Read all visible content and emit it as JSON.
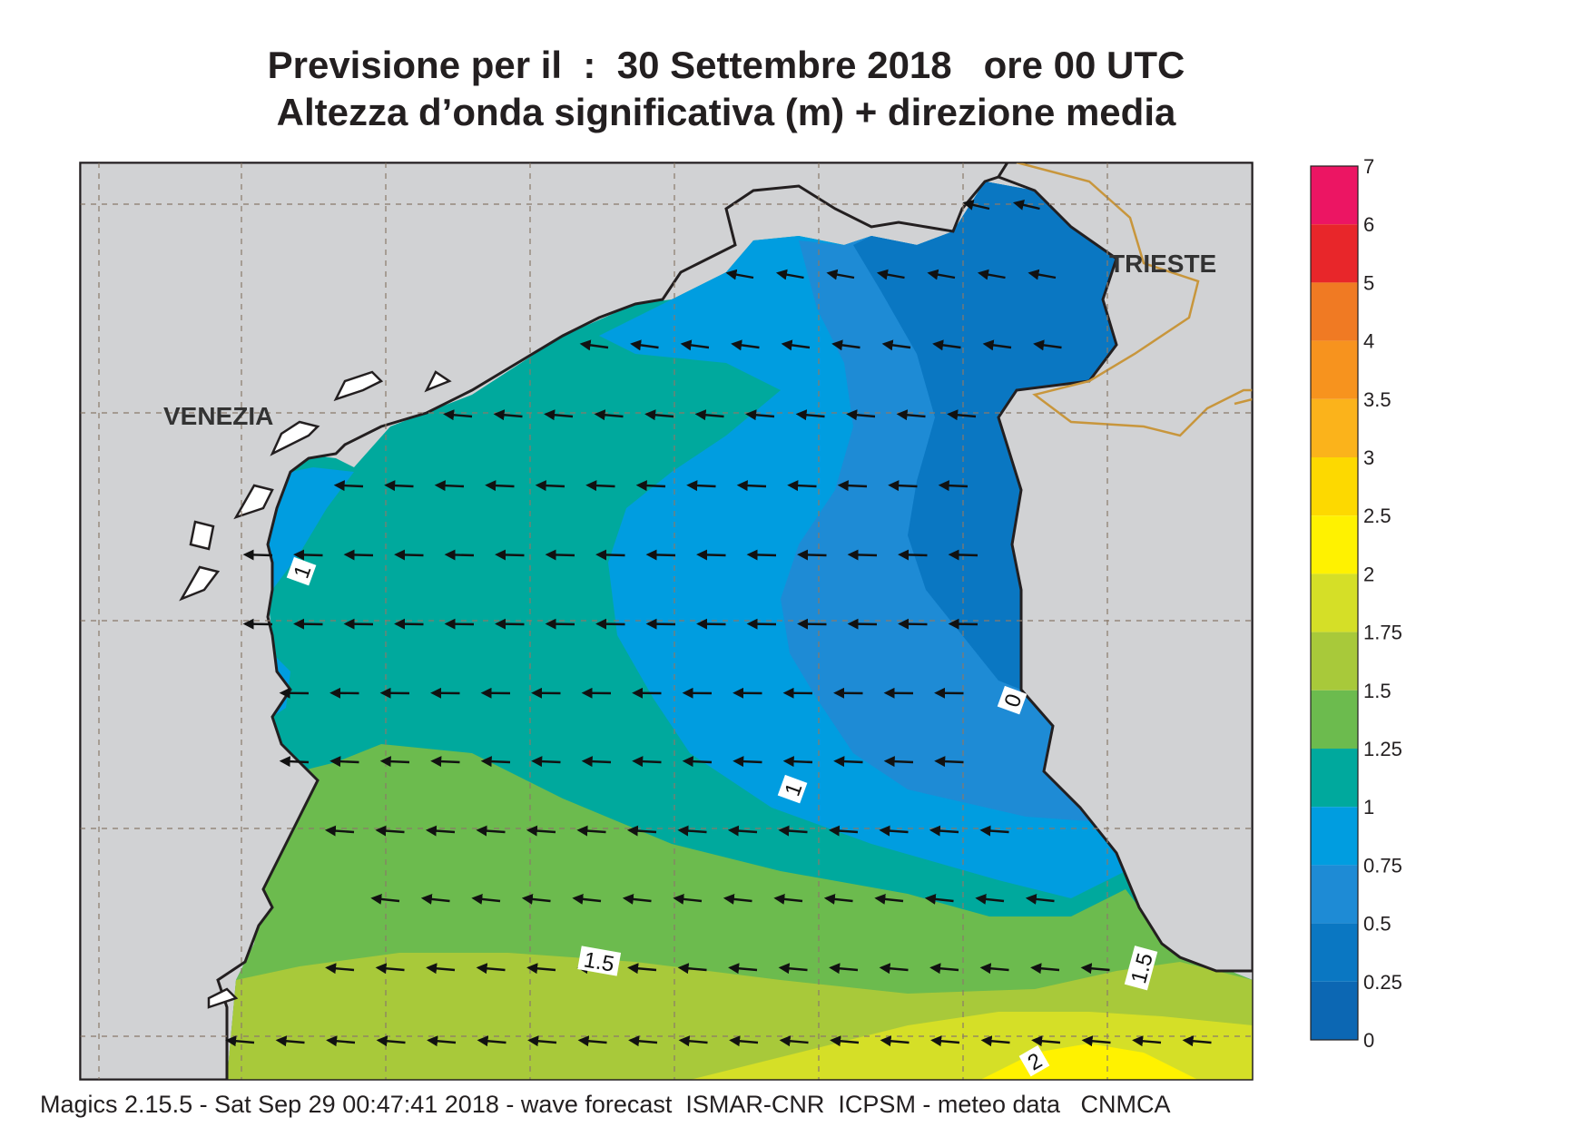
{
  "header": {
    "title_line1": "Previsione per il  :  30 Settembre 2018   ore 00 UTC",
    "title_line2": "Altezza d’onda significativa (m) + direzione media"
  },
  "cities": {
    "venezia": "VENEZIA",
    "trieste": "TRIESTE"
  },
  "contour_labels": [
    "1",
    "1",
    "0",
    "1.5",
    "1.5",
    "2"
  ],
  "colorbar": {
    "levels": [
      "7",
      "6",
      "5",
      "4",
      "3.5",
      "3",
      "2.5",
      "2",
      "1.75",
      "1.5",
      "1.25",
      "1",
      "0.75",
      "0.5",
      "0.25",
      "0"
    ],
    "colors": [
      "#ec1563",
      "#e8262a",
      "#f07a23",
      "#f7931e",
      "#fbb31b",
      "#fdd900",
      "#fff200",
      "#d5df27",
      "#a8c93a",
      "#6cbb4e",
      "#00a99d",
      "#009de0",
      "#1e8bd5",
      "#0a77c2",
      "#0c67b3"
    ]
  },
  "wave_direction_arrows": "arrows pointing west / south-west",
  "footer": {
    "text": "Magics 2.15.5 - Sat Sep 29 00:47:41 2018 - wave forecast  ISMAR-CNR  ICPSM - meteo data   CNMCA"
  }
}
